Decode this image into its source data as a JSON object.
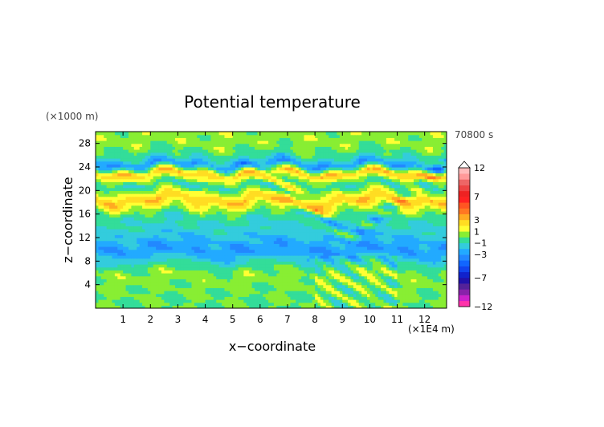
{
  "chart_data": {
    "type": "heatmap",
    "title": "Potential temperature",
    "time_label": "70800 s",
    "xlabel": "x−coordinate",
    "ylabel": "z−coordinate",
    "x_unit": "(×1E4 m)",
    "y_unit": "(×1000 m)",
    "xlim": [
      0,
      12.8
    ],
    "ylim": [
      0,
      30
    ],
    "x_ticks": [
      "1",
      "2",
      "3",
      "4",
      "5",
      "6",
      "7",
      "8",
      "9",
      "10",
      "11",
      "12"
    ],
    "y_ticks": [
      "4",
      "8",
      "12",
      "16",
      "20",
      "24",
      "28"
    ],
    "colorbar": {
      "levels": [
        -12,
        -11,
        -10,
        -9,
        -8,
        -7,
        -6,
        -5,
        -4,
        -3,
        -2,
        -1,
        0,
        1,
        2,
        3,
        4,
        5,
        6,
        7,
        8,
        9,
        10,
        11,
        12
      ],
      "tick_labels": [
        "12",
        "7",
        "3",
        "1",
        "−1",
        "−3",
        "−7",
        "−12"
      ],
      "colors": [
        "#ff33aa",
        "#cc22cc",
        "#8822aa",
        "#552299",
        "#2211aa",
        "#1122cc",
        "#1144ee",
        "#1166ff",
        "#2288ff",
        "#22aaff",
        "#33ccdd",
        "#33dd99",
        "#88ee33",
        "#ffff33",
        "#ffdd22",
        "#ffaa22",
        "#ff7722",
        "#ff5522",
        "#ff2222",
        "#ee2222",
        "#ee4444",
        "#ee6666",
        "#ff9999",
        "#ffbbbb"
      ]
    },
    "bands": [
      {
        "z": 28,
        "value": 0.5
      },
      {
        "z": 26,
        "value": -0.5
      },
      {
        "z": 24.5,
        "value": -3
      },
      {
        "z": 23,
        "value": 3
      },
      {
        "z": 21,
        "value": -1
      },
      {
        "z": 18.5,
        "value": 3
      },
      {
        "z": 16,
        "value": -0.5
      },
      {
        "z": 13,
        "value": -1.5
      },
      {
        "z": 10,
        "value": -3
      },
      {
        "z": 6,
        "value": 0.5
      },
      {
        "z": 2,
        "value": 0
      }
    ]
  }
}
